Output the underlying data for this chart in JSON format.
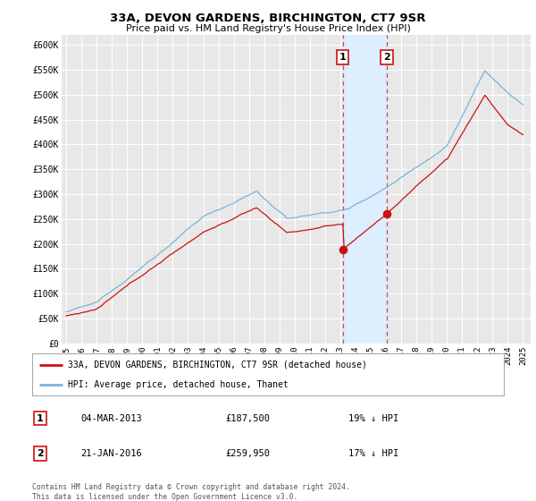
{
  "title": "33A, DEVON GARDENS, BIRCHINGTON, CT7 9SR",
  "subtitle": "Price paid vs. HM Land Registry's House Price Index (HPI)",
  "ylabel_ticks": [
    "£0",
    "£50K",
    "£100K",
    "£150K",
    "£200K",
    "£250K",
    "£300K",
    "£350K",
    "£400K",
    "£450K",
    "£500K",
    "£550K",
    "£600K"
  ],
  "ytick_values": [
    0,
    50000,
    100000,
    150000,
    200000,
    250000,
    300000,
    350000,
    400000,
    450000,
    500000,
    550000,
    600000
  ],
  "ylim": [
    0,
    620000
  ],
  "xlim_start": 1995.0,
  "xlim_end": 2025.5,
  "xtick_years": [
    1995,
    1996,
    1997,
    1998,
    1999,
    2000,
    2001,
    2002,
    2003,
    2004,
    2005,
    2006,
    2007,
    2008,
    2009,
    2010,
    2011,
    2012,
    2013,
    2014,
    2015,
    2016,
    2017,
    2018,
    2019,
    2020,
    2021,
    2022,
    2023,
    2024,
    2025
  ],
  "hpi_color": "#7ab4d8",
  "price_color": "#cc1111",
  "point1_x": 2013.17,
  "point1_y": 187500,
  "point2_x": 2016.05,
  "point2_y": 259950,
  "point1_date": "04-MAR-2013",
  "point1_price": "£187,500",
  "point1_hpi": "19% ↓ HPI",
  "point2_date": "21-JAN-2016",
  "point2_price": "£259,950",
  "point2_hpi": "17% ↓ HPI",
  "legend_line1": "33A, DEVON GARDENS, BIRCHINGTON, CT7 9SR (detached house)",
  "legend_line2": "HPI: Average price, detached house, Thanet",
  "footnote": "Contains HM Land Registry data © Crown copyright and database right 2024.\nThis data is licensed under the Open Government Licence v3.0.",
  "background_color": "#ffffff",
  "plot_bg_color": "#e8e8e8",
  "grid_color": "#ffffff",
  "span_color": "#ddeeff"
}
